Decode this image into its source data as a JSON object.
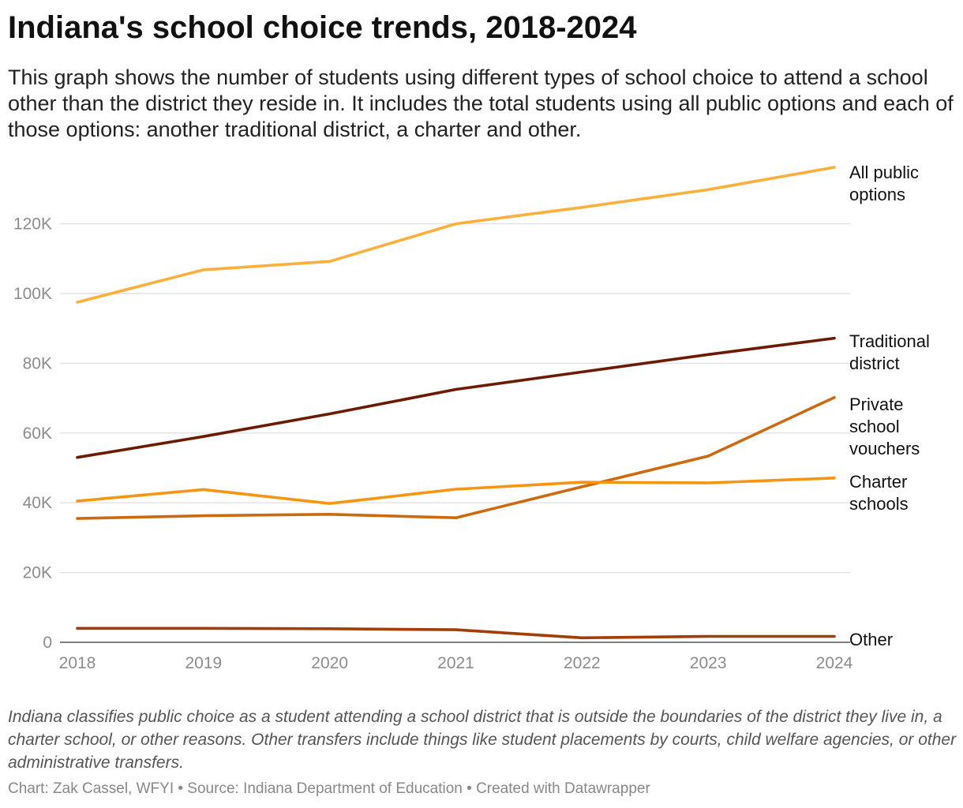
{
  "title": "Indiana's school choice trends, 2018-2024",
  "subtitle": "This graph shows the number of students using different types of school choice to attend a school other than the district they reside in. It includes the total students using all public options and each of those options: another traditional district, a charter and other.",
  "notes": "Indiana classifies public choice as a student attending a school district that is outside the boundaries of the district they live in, a charter school, or other reasons. Other transfers include things like student placements by courts, child welfare agencies, or other administrative transfers.",
  "credit": "Chart: Zak Cassel, WFYI • Source: Indiana Department of Education • Created with Datawrapper",
  "chart_data": {
    "type": "line",
    "x": [
      2018,
      2019,
      2020,
      2021,
      2022,
      2023,
      2024
    ],
    "x_tick_labels": [
      "2018",
      "2019",
      "2020",
      "2021",
      "2022",
      "2023",
      "2024"
    ],
    "y_ticks": [
      0,
      20000,
      40000,
      60000,
      80000,
      100000,
      120000
    ],
    "y_tick_labels": [
      "0",
      "20K",
      "40K",
      "60K",
      "80K",
      "100K",
      "120K"
    ],
    "ylim": [
      0,
      136000
    ],
    "grid": true,
    "legend": "direct labels at line ends (right)",
    "series": [
      {
        "name": "All public options",
        "label_lines": [
          "All public",
          "options"
        ],
        "color": "#fbb03b",
        "values": [
          97500,
          106800,
          109200,
          120000,
          124700,
          129800,
          136200
        ]
      },
      {
        "name": "Traditional district",
        "label_lines": [
          "Traditional",
          "district"
        ],
        "color": "#6b1a04",
        "values": [
          53000,
          59000,
          65500,
          72500,
          77500,
          82500,
          87200
        ]
      },
      {
        "name": "Private school vouchers",
        "label_lines": [
          "Private",
          "school",
          "vouchers"
        ],
        "color": "#cc6a0f",
        "values": [
          35500,
          36300,
          36700,
          35700,
          44600,
          53400,
          70200
        ]
      },
      {
        "name": "Charter schools",
        "label_lines": [
          "Charter",
          "schools"
        ],
        "color": "#f59612",
        "values": [
          40500,
          43800,
          39800,
          43900,
          45900,
          45700,
          47100
        ]
      },
      {
        "name": "Other",
        "label_lines": [
          "Other"
        ],
        "color": "#a13d06",
        "values": [
          4000,
          4000,
          3900,
          3600,
          1300,
          1700,
          1700
        ]
      }
    ]
  }
}
